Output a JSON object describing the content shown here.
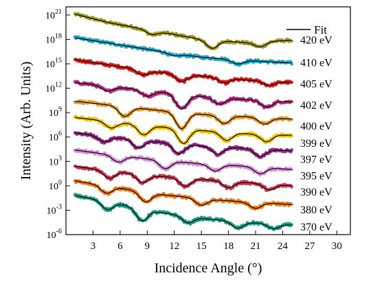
{
  "chart_data": {
    "type": "line",
    "xlabel": "Incidence Angle (°)",
    "ylabel": "Intensity (Arb. Units)",
    "xlim": [
      0,
      31.5
    ],
    "xticks": [
      3,
      6,
      9,
      12,
      15,
      18,
      21,
      24,
      27,
      30
    ],
    "ylim_log10": [
      -6,
      22
    ],
    "yticks": [
      {
        "exp": -6,
        "base": "10",
        "sup": "-6"
      },
      {
        "exp": -3,
        "base": "10",
        "sup": "-3"
      },
      {
        "exp": 0,
        "base": "10",
        "sup": "0"
      },
      {
        "exp": 3,
        "base": "10",
        "sup": "3"
      },
      {
        "exp": 6,
        "base": "10",
        "sup": "6"
      },
      {
        "exp": 9,
        "base": "10",
        "sup": "9"
      },
      {
        "exp": 12,
        "base": "10",
        "sup": "12"
      },
      {
        "exp": 15,
        "base": "10",
        "sup": "15"
      },
      {
        "exp": 18,
        "base": "10",
        "sup": "18"
      },
      {
        "exp": 21,
        "base": "10",
        "sup": "21"
      }
    ],
    "legend": {
      "label": "Fit",
      "placement": "top-right",
      "line_color": "#000000"
    },
    "x_range_data": [
      1.0,
      25.0
    ],
    "fit_color": "#000000",
    "series": [
      {
        "name": "420 eV",
        "color": "#a69a1e",
        "label_log10": 18.0,
        "base_log10": [
          [
            1.0,
            21.1
          ],
          [
            5,
            20.0
          ],
          [
            10,
            19.0
          ],
          [
            15,
            18.0
          ],
          [
            20,
            17.6
          ],
          [
            25,
            17.9
          ]
        ],
        "minima": [
          [
            9.5,
            0.5
          ],
          [
            16.2,
            1.0
          ],
          [
            21.5,
            0.6
          ]
        ]
      },
      {
        "name": "410 eV",
        "color": "#1aa7c9",
        "label_log10": 15.2,
        "base_log10": [
          [
            1.0,
            18.2
          ],
          [
            5,
            17.5
          ],
          [
            10,
            16.6
          ],
          [
            15,
            15.8
          ],
          [
            20,
            15.4
          ],
          [
            25,
            15.1
          ]
        ],
        "minima": [
          [
            12.0,
            0.3
          ],
          [
            19.0,
            0.5
          ]
        ]
      },
      {
        "name": "405 eV",
        "color": "#e01a1a",
        "label_log10": 12.6,
        "base_log10": [
          [
            1.0,
            15.5
          ],
          [
            5,
            14.8
          ],
          [
            10,
            14.0
          ],
          [
            15,
            13.5
          ],
          [
            20,
            13.0
          ],
          [
            25,
            12.7
          ]
        ],
        "minima": [
          [
            8.5,
            0.6
          ],
          [
            12.8,
            0.9
          ],
          [
            17.5,
            0.6
          ],
          [
            22.5,
            0.5
          ]
        ]
      },
      {
        "name": "402 eV",
        "color": "#b52f80",
        "label_log10": 10.0,
        "base_log10": [
          [
            1.0,
            12.7
          ],
          [
            5,
            12.2
          ],
          [
            10,
            11.6
          ],
          [
            15,
            11.0
          ],
          [
            20,
            10.6
          ],
          [
            25,
            10.3
          ]
        ],
        "minima": [
          [
            4.6,
            0.6
          ],
          [
            9.0,
            0.7
          ],
          [
            12.8,
            1.8
          ],
          [
            17.0,
            0.8
          ],
          [
            22.2,
            0.8
          ]
        ]
      },
      {
        "name": "400 eV",
        "color": "#e89a2a",
        "label_log10": 7.4,
        "base_log10": [
          [
            1.0,
            10.4
          ],
          [
            5,
            9.9
          ],
          [
            10,
            9.3
          ],
          [
            15,
            8.8
          ],
          [
            20,
            8.5
          ],
          [
            25,
            8.2
          ]
        ],
        "minima": [
          [
            6.5,
            1.2
          ],
          [
            12.8,
            2.0
          ],
          [
            17.5,
            1.0
          ],
          [
            22.0,
            0.8
          ]
        ]
      },
      {
        "name": "399 eV",
        "color": "#f0c400",
        "label_log10": 5.3,
        "base_log10": [
          [
            1.0,
            8.4
          ],
          [
            5,
            7.9
          ],
          [
            10,
            7.3
          ],
          [
            15,
            6.8
          ],
          [
            20,
            6.4
          ],
          [
            25,
            6.2
          ]
        ],
        "minima": [
          [
            5.0,
            0.8
          ],
          [
            8.6,
            1.2
          ],
          [
            13.0,
            1.8
          ],
          [
            17.8,
            1.0
          ],
          [
            22.2,
            0.9
          ]
        ]
      },
      {
        "name": "397 eV",
        "color": "#9a2a8a",
        "label_log10": 3.3,
        "base_log10": [
          [
            1.0,
            6.5
          ],
          [
            5,
            6.0
          ],
          [
            10,
            5.4
          ],
          [
            15,
            4.9
          ],
          [
            20,
            4.6
          ],
          [
            25,
            4.3
          ]
        ],
        "minima": [
          [
            4.2,
            0.7
          ],
          [
            8.0,
            1.0
          ],
          [
            12.5,
            1.2
          ],
          [
            16.8,
            0.9
          ],
          [
            21.5,
            0.9
          ]
        ]
      },
      {
        "name": "395 eV",
        "color": "#d98ad8",
        "label_log10": 1.3,
        "base_log10": [
          [
            1.0,
            4.4
          ],
          [
            5,
            3.8
          ],
          [
            10,
            3.2
          ],
          [
            15,
            2.7
          ],
          [
            20,
            2.4
          ],
          [
            25,
            2.0
          ]
        ],
        "minima": [
          [
            5.8,
            0.8
          ],
          [
            11.0,
            1.0
          ],
          [
            16.5,
            0.8
          ],
          [
            21.5,
            0.8
          ]
        ]
      },
      {
        "name": "390 eV",
        "color": "#c83a52",
        "label_log10": -0.7,
        "base_log10": [
          [
            1.0,
            2.4
          ],
          [
            5,
            1.8
          ],
          [
            10,
            1.2
          ],
          [
            15,
            0.8
          ],
          [
            20,
            0.4
          ],
          [
            25,
            0.0
          ]
        ],
        "minima": [
          [
            4.8,
            0.9
          ],
          [
            8.5,
            1.0
          ],
          [
            13.2,
            1.0
          ],
          [
            18.0,
            0.8
          ],
          [
            22.5,
            0.7
          ]
        ]
      },
      {
        "name": "380 eV",
        "color": "#f07a12",
        "label_log10": -2.9,
        "base_log10": [
          [
            1.0,
            0.6
          ],
          [
            5,
            -0.1
          ],
          [
            10,
            -1.0
          ],
          [
            15,
            -1.6
          ],
          [
            20,
            -2.0
          ],
          [
            25,
            -2.3
          ]
        ],
        "minima": [
          [
            4.5,
            0.9
          ],
          [
            8.8,
            1.2
          ],
          [
            15.0,
            0.8
          ],
          [
            21.0,
            0.7
          ]
        ]
      },
      {
        "name": "370 eV",
        "color": "#1aa085",
        "label_log10": -5.0,
        "base_log10": [
          [
            1.0,
            -1.2
          ],
          [
            5,
            -2.0
          ],
          [
            10,
            -3.2
          ],
          [
            15,
            -4.0
          ],
          [
            20,
            -4.5
          ],
          [
            25,
            -4.8
          ]
        ],
        "minima": [
          [
            4.6,
            1.0
          ],
          [
            8.4,
            1.5
          ],
          [
            13.5,
            0.8
          ],
          [
            19.0,
            0.8
          ],
          [
            23.0,
            0.6
          ]
        ]
      }
    ]
  }
}
